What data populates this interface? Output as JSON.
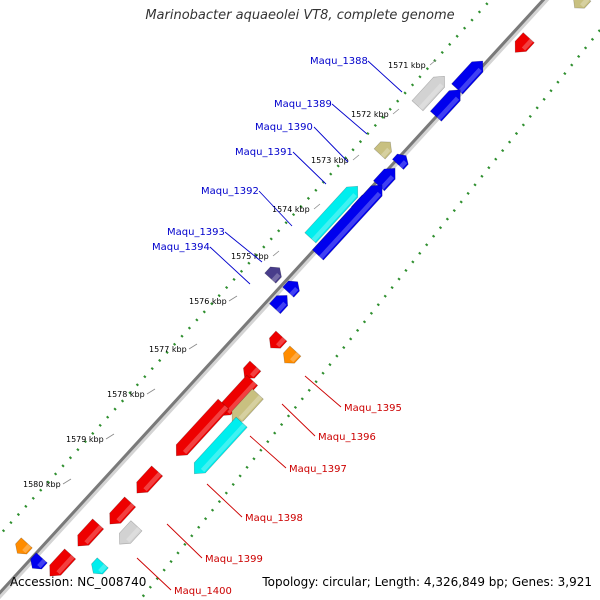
{
  "title": "Marinobacter aquaeolei VT8, complete genome",
  "footer": {
    "accession": "Accession: NC_008740",
    "summary": "Topology: circular; Length: 4,326,849 bp; Genes: 3,921"
  },
  "colors": {
    "backbone": "#7a7a7a",
    "dotted_track": "#2f8f2f",
    "forward_gene_label": "#0000cc",
    "reverse_gene_label": "#cc0000",
    "blue": "#0000ee",
    "cyan": "#00eeee",
    "red": "#ee0000",
    "khaki": "#c8c080",
    "light_gray": "#d2d2d2",
    "orange": "#ff8c00",
    "dark_slate_blue": "#483d8b"
  },
  "kbp_ticks": [
    "1571 kbp",
    "1572 kbp",
    "1573 kbp",
    "1574 kbp",
    "1575 kbp",
    "1576 kbp",
    "1577 kbp",
    "1578 kbp",
    "1579 kbp",
    "1580 kbp"
  ],
  "forward_gene_labels": [
    "Maqu_1388",
    "Maqu_1389",
    "Maqu_1390",
    "Maqu_1391",
    "Maqu_1392",
    "Maqu_1393",
    "Maqu_1394"
  ],
  "reverse_gene_labels": [
    "Maqu_1395",
    "Maqu_1396",
    "Maqu_1397",
    "Maqu_1398",
    "Maqu_1399",
    "Maqu_1400"
  ]
}
